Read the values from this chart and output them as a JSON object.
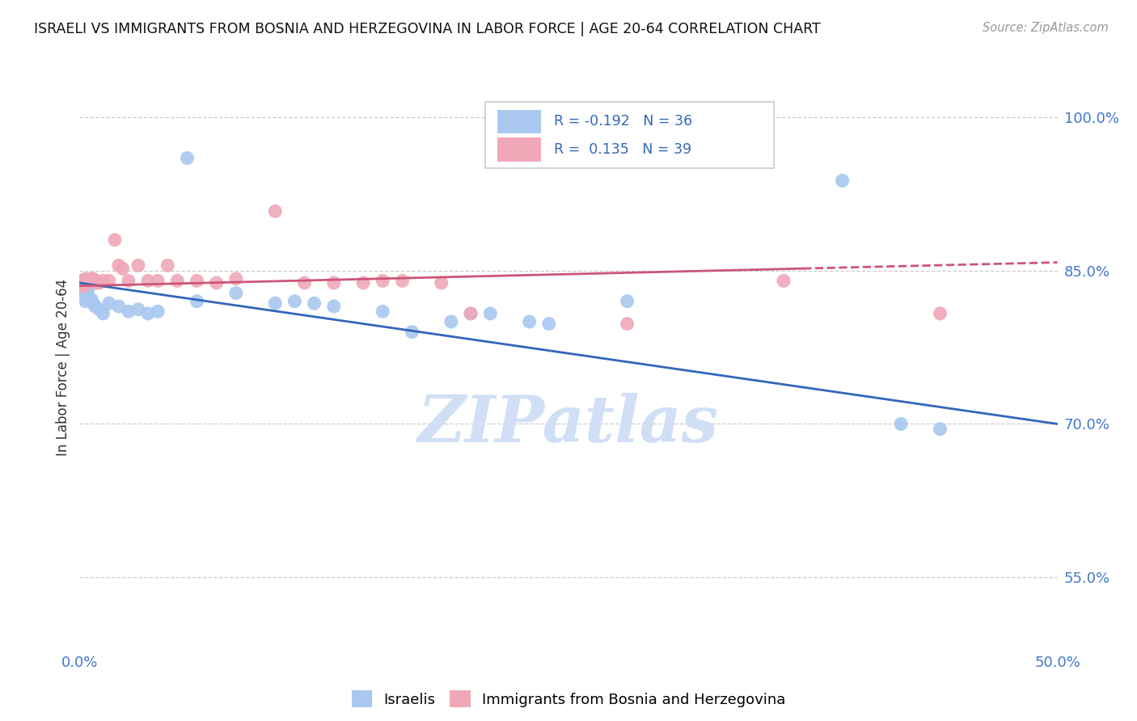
{
  "title": "ISRAELI VS IMMIGRANTS FROM BOSNIA AND HERZEGOVINA IN LABOR FORCE | AGE 20-64 CORRELATION CHART",
  "source": "Source: ZipAtlas.com",
  "ylabel": "In Labor Force | Age 20-64",
  "x_min": 0.0,
  "x_max": 0.5,
  "y_min": 0.48,
  "y_max": 1.03,
  "y_ticks": [
    0.55,
    0.7,
    0.85,
    1.0
  ],
  "y_tick_labels": [
    "55.0%",
    "70.0%",
    "85.0%",
    "100.0%"
  ],
  "x_ticks": [
    0.0,
    0.1,
    0.2,
    0.3,
    0.4,
    0.5
  ],
  "x_tick_labels": [
    "0.0%",
    "",
    "",
    "",
    "",
    "50.0%"
  ],
  "background_color": "#ffffff",
  "grid_color": "#cccccc",
  "israelis_color": "#a8c8f0",
  "bosnia_color": "#f0a8b8",
  "trend_blue_color": "#3366bb",
  "trend_pink_color": "#cc5577",
  "watermark_color": "#d0dff5",
  "R_israelis": -0.192,
  "N_israelis": 36,
  "R_bosnia": 0.135,
  "N_bosnia": 39,
  "israelis_x": [
    0.001,
    0.002,
    0.002,
    0.003,
    0.003,
    0.004,
    0.005,
    0.006,
    0.007,
    0.008,
    0.01,
    0.012,
    0.015,
    0.02,
    0.025,
    0.03,
    0.035,
    0.04,
    0.055,
    0.06,
    0.08,
    0.1,
    0.11,
    0.12,
    0.13,
    0.155,
    0.17,
    0.19,
    0.2,
    0.21,
    0.23,
    0.24,
    0.28,
    0.39,
    0.42,
    0.44
  ],
  "israelis_y": [
    0.838,
    0.832,
    0.825,
    0.82,
    0.828,
    0.83,
    0.835,
    0.822,
    0.818,
    0.815,
    0.812,
    0.808,
    0.818,
    0.815,
    0.81,
    0.812,
    0.808,
    0.81,
    0.96,
    0.82,
    0.828,
    0.818,
    0.82,
    0.818,
    0.815,
    0.81,
    0.79,
    0.8,
    0.808,
    0.808,
    0.8,
    0.798,
    0.82,
    0.938,
    0.7,
    0.695
  ],
  "bosnia_x": [
    0.001,
    0.001,
    0.002,
    0.002,
    0.003,
    0.003,
    0.004,
    0.004,
    0.005,
    0.006,
    0.007,
    0.008,
    0.009,
    0.01,
    0.012,
    0.015,
    0.018,
    0.02,
    0.022,
    0.025,
    0.03,
    0.035,
    0.04,
    0.045,
    0.05,
    0.06,
    0.07,
    0.08,
    0.1,
    0.115,
    0.13,
    0.145,
    0.155,
    0.165,
    0.185,
    0.2,
    0.28,
    0.36,
    0.44
  ],
  "bosnia_y": [
    0.84,
    0.835,
    0.84,
    0.835,
    0.838,
    0.842,
    0.84,
    0.838,
    0.84,
    0.842,
    0.842,
    0.84,
    0.838,
    0.838,
    0.84,
    0.84,
    0.88,
    0.855,
    0.852,
    0.84,
    0.855,
    0.84,
    0.84,
    0.855,
    0.84,
    0.84,
    0.838,
    0.842,
    0.908,
    0.838,
    0.838,
    0.838,
    0.84,
    0.84,
    0.838,
    0.808,
    0.798,
    0.84,
    0.808
  ]
}
